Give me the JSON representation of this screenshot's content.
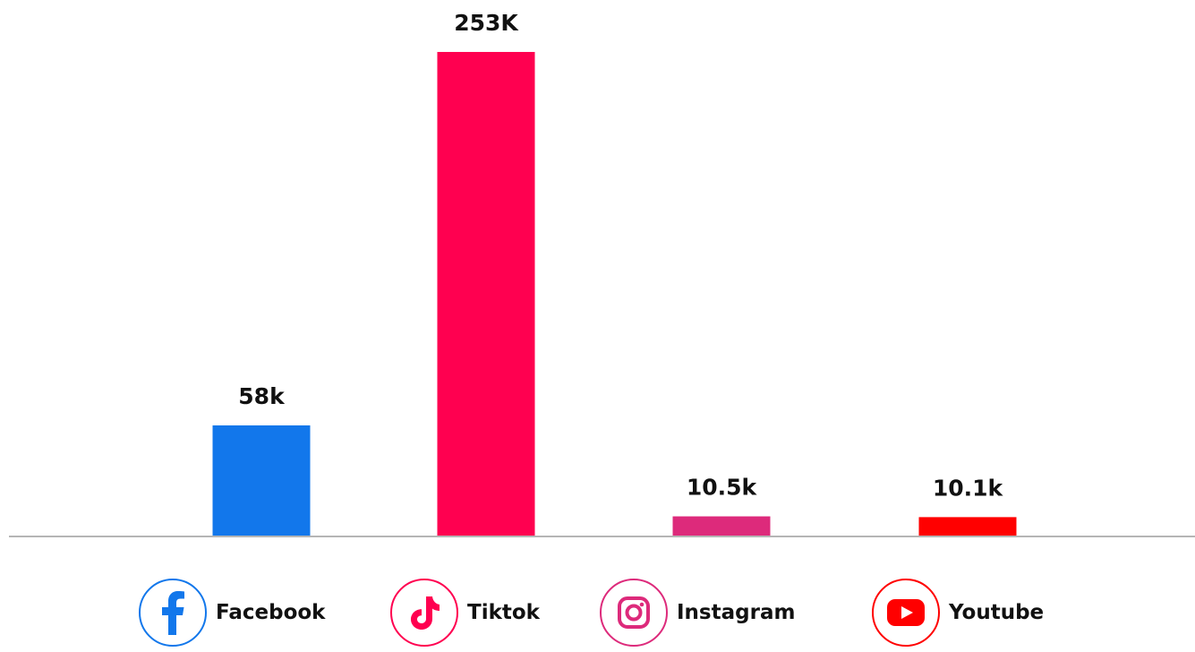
{
  "chart_data": {
    "type": "bar",
    "categories": [
      "Facebook",
      "Tiktok",
      "Instagram",
      "Youtube"
    ],
    "values": [
      58000,
      253000,
      10500,
      10100
    ],
    "data_labels": [
      "58k",
      "253K",
      "10.5k",
      "10.1k"
    ],
    "colors": [
      "#1277EB",
      "#FF0050",
      "#DD2A7B",
      "#FF0000"
    ],
    "icons": [
      "facebook-icon",
      "tiktok-icon",
      "instagram-icon",
      "youtube-icon"
    ],
    "title": "",
    "xlabel": "",
    "ylabel": "",
    "grid": false,
    "legend_position": "bottom"
  },
  "legend": {
    "items": [
      {
        "label": "Facebook",
        "color": "#1277EB",
        "icon": "facebook-icon"
      },
      {
        "label": "Tiktok",
        "color": "#FF0050",
        "icon": "tiktok-icon"
      },
      {
        "label": "Instagram",
        "color": "#DD2A7B",
        "icon": "instagram-icon"
      },
      {
        "label": "Youtube",
        "color": "#FF0000",
        "icon": "youtube-icon"
      }
    ]
  }
}
